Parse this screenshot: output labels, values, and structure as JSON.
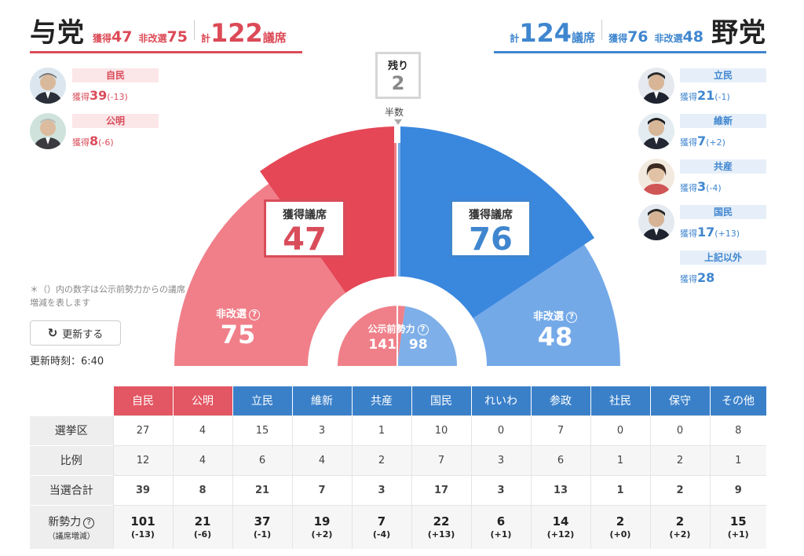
{
  "ruling": {
    "title": "与党",
    "won_label": "獲得",
    "won": "47",
    "nonup_label": "非改選",
    "nonup": "75",
    "total_label": "計",
    "total": "122",
    "seat_label": "議席",
    "parties": [
      {
        "name": "自民",
        "won_label": "獲得",
        "won": "39",
        "diff": "(-13)"
      },
      {
        "name": "公明",
        "won_label": "獲得",
        "won": "8",
        "diff": "(-6)"
      }
    ]
  },
  "opposition": {
    "title": "野党",
    "won_label": "獲得",
    "won": "76",
    "nonup_label": "非改選",
    "nonup": "48",
    "total_label": "計",
    "total": "124",
    "seat_label": "議席",
    "parties": [
      {
        "name": "立民",
        "won_label": "獲得",
        "won": "21",
        "diff": "(-1)"
      },
      {
        "name": "維新",
        "won_label": "獲得",
        "won": "7",
        "diff": "(+2)"
      },
      {
        "name": "共産",
        "won_label": "獲得",
        "won": "3",
        "diff": "(-4)"
      },
      {
        "name": "国民",
        "won_label": "獲得",
        "won": "17",
        "diff": "(+13)"
      },
      {
        "name": "上記以外",
        "won_label": "獲得",
        "won": "28",
        "diff": ""
      }
    ]
  },
  "center": {
    "remain_label": "残り",
    "remain": "2",
    "half_label": "半数",
    "won_label": "獲得議席",
    "left_won": "47",
    "right_won": "76",
    "nonup_label": "非改選",
    "left_nonup": "75",
    "right_nonup": "48",
    "prev_label": "公示前勢力",
    "prev_left": "141",
    "prev_right": "98"
  },
  "note": "＊（）内の数字は公示前勢力からの議席増減を表します",
  "refresh_label": "更新する",
  "updated": "更新時刻：6:40",
  "icons": {
    "refresh": "refresh-icon",
    "help": "question-circle-icon"
  },
  "colors": {
    "ruling": "#dc4a57",
    "opposition": "#3f86cf",
    "ruling_light": "#f08a93",
    "opposition_light": "#78acea"
  },
  "table": {
    "columns": [
      "自民",
      "公明",
      "立民",
      "維新",
      "共産",
      "国民",
      "れいわ",
      "参政",
      "社民",
      "保守",
      "その他"
    ],
    "row_labels": [
      "選挙区",
      "比例",
      "当選合計",
      "新勢力",
      "（議席増減）"
    ],
    "district": [
      "27",
      "4",
      "15",
      "3",
      "1",
      "10",
      "0",
      "7",
      "0",
      "0",
      "8"
    ],
    "pr": [
      "12",
      "4",
      "6",
      "4",
      "2",
      "7",
      "3",
      "6",
      "1",
      "2",
      "1"
    ],
    "total": [
      "39",
      "8",
      "21",
      "7",
      "3",
      "17",
      "3",
      "13",
      "1",
      "2",
      "9"
    ],
    "new_power": [
      "101",
      "21",
      "37",
      "19",
      "7",
      "22",
      "6",
      "14",
      "2",
      "2",
      "15"
    ],
    "new_diff": [
      "(-13)",
      "(-6)",
      "(-1)",
      "(+2)",
      "(-4)",
      "(+13)",
      "(+1)",
      "(+12)",
      "(+0)",
      "(+2)",
      "(+1)"
    ]
  }
}
